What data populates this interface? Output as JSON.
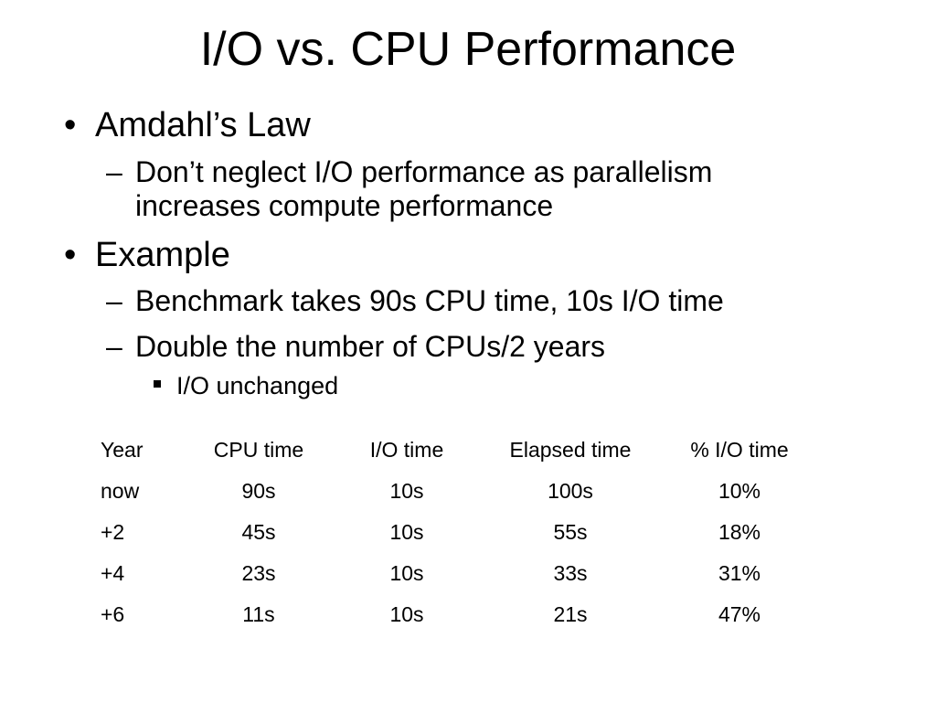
{
  "slide": {
    "title": "I/O vs. CPU Performance",
    "bullets": [
      {
        "text": "Amdahl’s Law",
        "sub": [
          {
            "text_line1": "Don’t neglect I/O performance as parallelism",
            "text_line2": "increases compute performance"
          }
        ]
      },
      {
        "text": "Example",
        "sub": [
          {
            "text": "Benchmark takes 90s CPU time, 10s I/O time"
          },
          {
            "text": "Double the number of CPUs/2 years",
            "sub": [
              {
                "text": "I/O unchanged"
              }
            ]
          }
        ]
      }
    ],
    "bullet_glyph": "•",
    "dash_glyph": "–"
  },
  "table": {
    "headers": [
      "Year",
      "CPU time",
      "I/O time",
      "Elapsed time",
      "% I/O time"
    ],
    "rows": [
      [
        "now",
        "90s",
        "10s",
        "100s",
        "10%"
      ],
      [
        "+2",
        "45s",
        "10s",
        "55s",
        "18%"
      ],
      [
        "+4",
        "23s",
        "10s",
        "33s",
        "31%"
      ],
      [
        "+6",
        "11s",
        "10s",
        "21s",
        "47%"
      ]
    ]
  }
}
